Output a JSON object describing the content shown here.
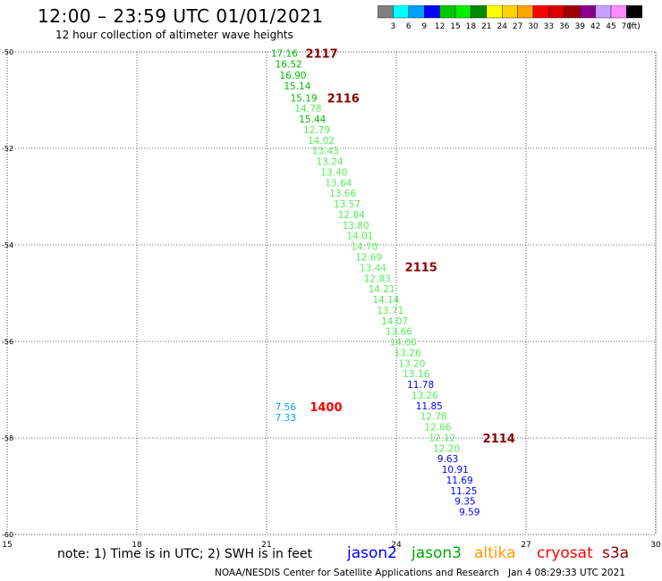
{
  "title": "12:00 – 23:59 UTC 01/01/2021",
  "subtitle": "12 hour collection of altimeter wave heights",
  "colorbar": {
    "colors": [
      "#7f7f7f",
      "#00ffff",
      "#00a0ff",
      "#0000ff",
      "#00c800",
      "#00ee00",
      "#008c00",
      "#ffff00",
      "#ffd400",
      "#ffa500",
      "#ff0000",
      "#dc0000",
      "#a00000",
      "#8c008c",
      "#c8a0ff",
      "#ff8cff",
      "#000000"
    ],
    "labels": [
      "3",
      "6",
      "9",
      "12",
      "15",
      "18",
      "21",
      "24",
      "27",
      "30",
      "33",
      "36",
      "39",
      "42",
      "45",
      "70"
    ],
    "unit": "(ft)"
  },
  "axes": {
    "x_ticks": [
      "15",
      "18",
      "21",
      "24",
      "27",
      "30"
    ],
    "y_ticks": [
      "-50",
      "-52",
      "-54",
      "-56",
      "-58",
      "-60"
    ]
  },
  "tracks": [
    {
      "label": "2117",
      "color": "#8b0000",
      "lon": 21.9,
      "lat": -50.03
    },
    {
      "label": "2116",
      "color": "#8b0000",
      "lon": 22.4,
      "lat": -50.95
    },
    {
      "label": "2115",
      "color": "#8b0000",
      "lon": 24.2,
      "lat": -54.45
    },
    {
      "label": "1400",
      "color": "#ff0000",
      "lon": 22.0,
      "lat": -57.35
    },
    {
      "label": "2114",
      "color": "#8b0000",
      "lon": 26.0,
      "lat": -58.0
    }
  ],
  "observations": [
    {
      "value": "17.16",
      "color": "#00bb00",
      "lon": 21.1,
      "lat": -50.03
    },
    {
      "value": "16.52",
      "color": "#00bb00",
      "lon": 21.2,
      "lat": -50.25
    },
    {
      "value": "16.90",
      "color": "#00bb00",
      "lon": 21.3,
      "lat": -50.48
    },
    {
      "value": "15.14",
      "color": "#00bb00",
      "lon": 21.4,
      "lat": -50.7
    },
    {
      "value": "15.19",
      "color": "#00bb00",
      "lon": 21.55,
      "lat": -50.95
    },
    {
      "value": "14.78",
      "color": "#55ee55",
      "lon": 21.65,
      "lat": -51.17
    },
    {
      "value": "15.44",
      "color": "#00bb00",
      "lon": 21.75,
      "lat": -51.39
    },
    {
      "value": "12.79",
      "color": "#55ee55",
      "lon": 21.85,
      "lat": -51.61
    },
    {
      "value": "14.02",
      "color": "#55ee55",
      "lon": 21.95,
      "lat": -51.83
    },
    {
      "value": "13.43",
      "color": "#55ee55",
      "lon": 22.05,
      "lat": -52.05
    },
    {
      "value": "13.24",
      "color": "#55ee55",
      "lon": 22.15,
      "lat": -52.27
    },
    {
      "value": "13.40",
      "color": "#55ee55",
      "lon": 22.25,
      "lat": -52.49
    },
    {
      "value": "13.64",
      "color": "#55ee55",
      "lon": 22.35,
      "lat": -52.71
    },
    {
      "value": "13.66",
      "color": "#55ee55",
      "lon": 22.45,
      "lat": -52.93
    },
    {
      "value": "13.57",
      "color": "#55ee55",
      "lon": 22.55,
      "lat": -53.15
    },
    {
      "value": "12.84",
      "color": "#55ee55",
      "lon": 22.65,
      "lat": -53.37
    },
    {
      "value": "13.80",
      "color": "#55ee55",
      "lon": 22.75,
      "lat": -53.59
    },
    {
      "value": "14.01",
      "color": "#55ee55",
      "lon": 22.85,
      "lat": -53.81
    },
    {
      "value": "14.70",
      "color": "#55ee55",
      "lon": 22.95,
      "lat": -54.03
    },
    {
      "value": "12.69",
      "color": "#55ee55",
      "lon": 23.05,
      "lat": -54.25
    },
    {
      "value": "13.44",
      "color": "#55ee55",
      "lon": 23.15,
      "lat": -54.47
    },
    {
      "value": "12.83",
      "color": "#55ee55",
      "lon": 23.25,
      "lat": -54.69
    },
    {
      "value": "14.21",
      "color": "#55ee55",
      "lon": 23.35,
      "lat": -54.91
    },
    {
      "value": "14.14",
      "color": "#55ee55",
      "lon": 23.45,
      "lat": -55.13
    },
    {
      "value": "13.71",
      "color": "#55ee55",
      "lon": 23.55,
      "lat": -55.35
    },
    {
      "value": "14.07",
      "color": "#55ee55",
      "lon": 23.65,
      "lat": -55.57
    },
    {
      "value": "13.66",
      "color": "#55ee55",
      "lon": 23.75,
      "lat": -55.79
    },
    {
      "value": "14.00",
      "color": "#55ee55",
      "lon": 23.85,
      "lat": -56.01
    },
    {
      "value": "13.26",
      "color": "#55ee55",
      "lon": 23.95,
      "lat": -56.23
    },
    {
      "value": "13.20",
      "color": "#55ee55",
      "lon": 24.05,
      "lat": -56.45
    },
    {
      "value": "13.16",
      "color": "#55ee55",
      "lon": 24.15,
      "lat": -56.67
    },
    {
      "value": "11.78",
      "color": "#0000ff",
      "lon": 24.25,
      "lat": -56.89
    },
    {
      "value": "13.26",
      "color": "#55ee55",
      "lon": 24.35,
      "lat": -57.11
    },
    {
      "value": "11.85",
      "color": "#0000ff",
      "lon": 24.45,
      "lat": -57.33
    },
    {
      "value": "12.78",
      "color": "#55ee55",
      "lon": 24.55,
      "lat": -57.55
    },
    {
      "value": "12.66",
      "color": "#55ee55",
      "lon": 24.65,
      "lat": -57.77
    },
    {
      "value": "12.12",
      "color": "#55ee55",
      "lon": 24.75,
      "lat": -57.99
    },
    {
      "value": "12.20",
      "color": "#55ee55",
      "lon": 24.85,
      "lat": -58.21
    },
    {
      "value": "9.63",
      "color": "#0000ff",
      "lon": 24.95,
      "lat": -58.43
    },
    {
      "value": "10.91",
      "color": "#0000ff",
      "lon": 25.05,
      "lat": -58.65
    },
    {
      "value": "11.69",
      "color": "#0000ff",
      "lon": 25.15,
      "lat": -58.87
    },
    {
      "value": "11.25",
      "color": "#0000ff",
      "lon": 25.25,
      "lat": -59.09
    },
    {
      "value": "9.35",
      "color": "#0000ff",
      "lon": 25.35,
      "lat": -59.31
    },
    {
      "value": "9.59",
      "color": "#0000ff",
      "lon": 25.45,
      "lat": -59.53
    },
    {
      "value": "7.56",
      "color": "#00a0ff",
      "lon": 21.2,
      "lat": -57.35
    },
    {
      "value": "7.33",
      "color": "#00a0ff",
      "lon": 21.2,
      "lat": -57.57
    }
  ],
  "footer": {
    "note": "note: 1) Time is in UTC; 2) SWH is in feet",
    "legend": [
      {
        "name": "jason2",
        "color": "#0000ff"
      },
      {
        "name": "jason3",
        "color": "#00aa00"
      },
      {
        "name": "altika",
        "color": "#ff9900"
      },
      {
        "name": "cryosat",
        "color": "#ff0000"
      },
      {
        "name": "s3a",
        "color": "#8b0000"
      }
    ],
    "credit": "NOAA/NESDIS Center for Satellite Applications and Research",
    "timestamp": "Jan  4 08:29:33 UTC 2021"
  }
}
